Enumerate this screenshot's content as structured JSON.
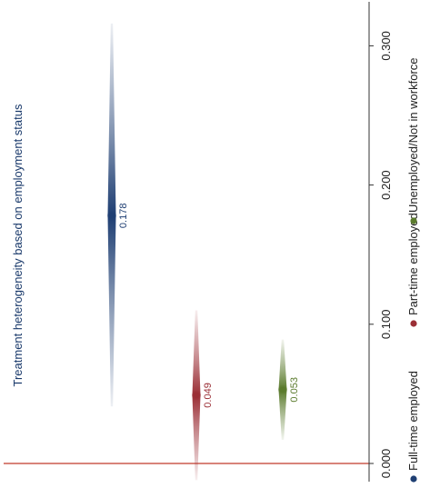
{
  "chart_data": {
    "type": "scatter",
    "title": "Treatment heterogeneity based on employment status",
    "ylim": [
      0,
      0.32
    ],
    "yticks": [
      "0.000",
      "0.100",
      "0.200",
      "0.300"
    ],
    "reference_line": {
      "value": 0,
      "color": "#c0392b"
    },
    "legend_position": "bottom",
    "series": [
      {
        "name": "Full-time employed",
        "estimate": 0.178,
        "label": "0.178",
        "ci_low": 0.041,
        "ci_high": 0.316,
        "color": "#1f3f73"
      },
      {
        "name": "Part-time employed",
        "estimate": 0.049,
        "label": "0.049",
        "ci_low": -0.012,
        "ci_high": 0.11,
        "color": "#9b2f36"
      },
      {
        "name": "Unemployed/Not in workforce",
        "estimate": 0.053,
        "label": "0.053",
        "ci_low": 0.017,
        "ci_high": 0.089,
        "color": "#5b7b2d"
      }
    ]
  }
}
